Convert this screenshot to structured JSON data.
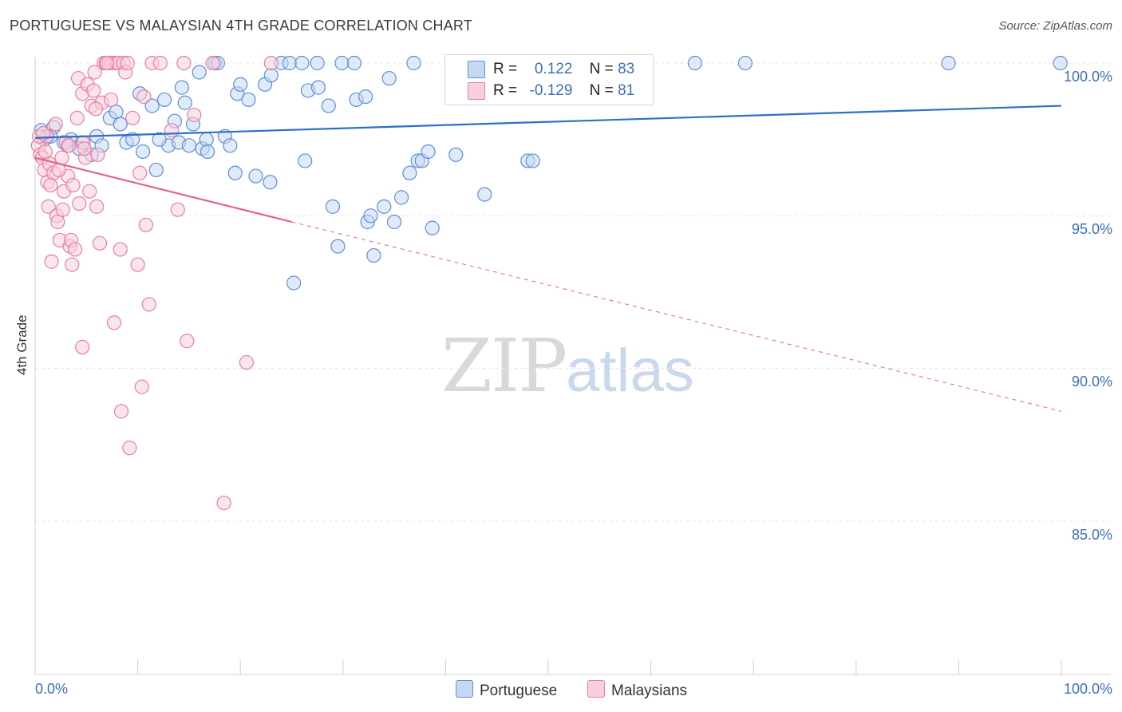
{
  "header": {
    "title": "PORTUGUESE VS MALAYSIAN 4TH GRADE CORRELATION CHART",
    "source": "Source: ZipAtlas.com"
  },
  "watermark": {
    "zip": "ZIP",
    "atlas": "atlas"
  },
  "colors": {
    "portuguese": "#5b8fd9",
    "portuguese_fill": "#c6d9f3",
    "portuguese_line": "#2d6fca",
    "malaysian": "#e97ea0",
    "malaysian_fill": "#f8cfdc",
    "malaysian_line": "#e0668d",
    "tick": "#3c6fb8"
  },
  "legend_stats": {
    "r_label": "R =",
    "n_label": "N =",
    "portuguese": {
      "r": "0.122",
      "n": "83"
    },
    "malaysian": {
      "r": "-0.129",
      "n": "81"
    }
  },
  "legend_bottom": {
    "portuguese": "Portuguese",
    "malaysian": "Malaysians"
  },
  "chart_data": {
    "type": "scatter",
    "title": "PORTUGUESE VS MALAYSIAN 4TH GRADE CORRELATION CHART",
    "xlabel": "",
    "ylabel": "4th Grade",
    "xlim": [
      0,
      100
    ],
    "ylim": [
      80.3,
      100.6
    ],
    "x_tick_labels": [
      "0.0%",
      "100.0%"
    ],
    "y_ticks": [
      100,
      95,
      90,
      85
    ],
    "y_tick_labels": [
      "100.0%",
      "95.0%",
      "90.0%",
      "85.0%"
    ],
    "grid": true,
    "series": [
      {
        "name": "Portuguese",
        "r": 0.122,
        "n": 83,
        "trend": {
          "x": [
            0,
            100
          ],
          "y": [
            97.55,
            98.6
          ],
          "style": "solid"
        },
        "points": [
          [
            0.6,
            97.8
          ],
          [
            0.9,
            97.5
          ],
          [
            1.8,
            97.9
          ],
          [
            1.2,
            97.6
          ],
          [
            3.5,
            97.5
          ],
          [
            4.6,
            97.4
          ],
          [
            2.8,
            97.4
          ],
          [
            1.5,
            97.6
          ],
          [
            3.2,
            97.3
          ],
          [
            5.5,
            97.0
          ],
          [
            6.0,
            97.6
          ],
          [
            6.5,
            97.3
          ],
          [
            4.3,
            97.2
          ],
          [
            7.3,
            98.2
          ],
          [
            7.9,
            98.4
          ],
          [
            8.3,
            98.0
          ],
          [
            8.9,
            97.4
          ],
          [
            9.5,
            97.5
          ],
          [
            10.5,
            97.1
          ],
          [
            10.2,
            99.0
          ],
          [
            11.4,
            98.6
          ],
          [
            11.8,
            96.5
          ],
          [
            12.6,
            98.8
          ],
          [
            13.0,
            97.3
          ],
          [
            13.6,
            98.1
          ],
          [
            14.0,
            97.4
          ],
          [
            14.3,
            99.2
          ],
          [
            14.6,
            98.7
          ],
          [
            15.4,
            98.0
          ],
          [
            16.0,
            99.7
          ],
          [
            16.3,
            97.2
          ],
          [
            16.7,
            97.5
          ],
          [
            17.5,
            100.0
          ],
          [
            17.8,
            100.0
          ],
          [
            18.5,
            97.6
          ],
          [
            19.0,
            97.3
          ],
          [
            19.5,
            96.4
          ],
          [
            19.7,
            99.0
          ],
          [
            20.0,
            99.3
          ],
          [
            20.8,
            98.8
          ],
          [
            21.5,
            96.3
          ],
          [
            22.4,
            99.3
          ],
          [
            22.9,
            96.1
          ],
          [
            23.0,
            99.6
          ],
          [
            24.0,
            100.0
          ],
          [
            24.8,
            100.0
          ],
          [
            25.2,
            92.8
          ],
          [
            26.0,
            100.0
          ],
          [
            26.3,
            96.8
          ],
          [
            26.6,
            99.1
          ],
          [
            27.5,
            100.0
          ],
          [
            27.6,
            99.2
          ],
          [
            28.6,
            98.6
          ],
          [
            29.0,
            95.3
          ],
          [
            29.5,
            94.0
          ],
          [
            29.9,
            100.0
          ],
          [
            31.1,
            100.0
          ],
          [
            31.3,
            98.8
          ],
          [
            32.2,
            98.9
          ],
          [
            32.4,
            94.8
          ],
          [
            32.7,
            95.0
          ],
          [
            33.0,
            93.7
          ],
          [
            34.0,
            95.3
          ],
          [
            34.5,
            99.5
          ],
          [
            35.0,
            94.8
          ],
          [
            35.7,
            95.6
          ],
          [
            36.5,
            96.4
          ],
          [
            36.9,
            100.0
          ],
          [
            37.3,
            96.8
          ],
          [
            37.7,
            96.8
          ],
          [
            38.3,
            97.1
          ],
          [
            38.7,
            94.6
          ],
          [
            41.0,
            97.0
          ],
          [
            43.8,
            95.7
          ],
          [
            48.0,
            96.8
          ],
          [
            48.5,
            96.8
          ],
          [
            64.3,
            100.0
          ],
          [
            69.2,
            100.0
          ],
          [
            89.0,
            100.0
          ],
          [
            99.9,
            100.0
          ],
          [
            12.1,
            97.5
          ],
          [
            15.0,
            97.3
          ],
          [
            16.8,
            97.1
          ]
        ]
      },
      {
        "name": "Malaysians",
        "r": -0.129,
        "n": 81,
        "trend": {
          "x": [
            0,
            25,
            100
          ],
          "y": [
            96.9,
            94.8,
            88.6
          ],
          "solid_until": 25,
          "style": "solid-then-dashed"
        },
        "points": [
          [
            0.3,
            97.3
          ],
          [
            0.5,
            97.0
          ],
          [
            0.7,
            96.9
          ],
          [
            0.9,
            96.5
          ],
          [
            1.1,
            97.6
          ],
          [
            1.2,
            96.1
          ],
          [
            1.3,
            95.3
          ],
          [
            1.4,
            96.7
          ],
          [
            1.6,
            93.5
          ],
          [
            1.8,
            96.4
          ],
          [
            2.1,
            95.0
          ],
          [
            2.2,
            94.8
          ],
          [
            2.4,
            94.2
          ],
          [
            2.6,
            96.9
          ],
          [
            2.7,
            95.2
          ],
          [
            2.8,
            95.8
          ],
          [
            3.0,
            97.4
          ],
          [
            3.2,
            96.3
          ],
          [
            3.4,
            94.0
          ],
          [
            3.5,
            94.2
          ],
          [
            3.6,
            93.4
          ],
          [
            3.7,
            96.0
          ],
          [
            3.9,
            93.9
          ],
          [
            4.1,
            98.2
          ],
          [
            4.2,
            99.5
          ],
          [
            4.3,
            95.4
          ],
          [
            4.6,
            99.0
          ],
          [
            4.7,
            97.4
          ],
          [
            4.9,
            96.9
          ],
          [
            5.1,
            99.3
          ],
          [
            5.3,
            95.8
          ],
          [
            5.5,
            98.6
          ],
          [
            5.7,
            99.1
          ],
          [
            5.8,
            99.7
          ],
          [
            6.0,
            95.3
          ],
          [
            6.3,
            94.1
          ],
          [
            6.5,
            98.7
          ],
          [
            6.7,
            100.0
          ],
          [
            6.9,
            100.0
          ],
          [
            7.2,
            100.0
          ],
          [
            7.4,
            98.8
          ],
          [
            7.5,
            100.0
          ],
          [
            7.7,
            91.5
          ],
          [
            7.9,
            100.0
          ],
          [
            8.1,
            100.0
          ],
          [
            8.3,
            93.9
          ],
          [
            8.4,
            88.6
          ],
          [
            8.6,
            100.0
          ],
          [
            8.8,
            99.7
          ],
          [
            9.2,
            87.4
          ],
          [
            9.5,
            98.2
          ],
          [
            10.0,
            93.4
          ],
          [
            10.2,
            96.4
          ],
          [
            10.4,
            89.4
          ],
          [
            10.8,
            94.7
          ],
          [
            11.1,
            92.1
          ],
          [
            11.4,
            100.0
          ],
          [
            13.3,
            97.8
          ],
          [
            13.9,
            95.2
          ],
          [
            14.5,
            100.0
          ],
          [
            14.8,
            90.9
          ],
          [
            15.5,
            98.3
          ],
          [
            17.3,
            100.0
          ],
          [
            18.4,
            85.6
          ],
          [
            20.6,
            90.2
          ],
          [
            23.0,
            100.0
          ],
          [
            4.6,
            90.7
          ],
          [
            2.0,
            98.0
          ],
          [
            0.4,
            97.6
          ],
          [
            1.0,
            97.1
          ],
          [
            1.5,
            96.0
          ],
          [
            3.3,
            97.3
          ],
          [
            2.3,
            96.5
          ],
          [
            4.8,
            97.2
          ],
          [
            6.1,
            97.0
          ],
          [
            10.6,
            98.9
          ],
          [
            12.2,
            100.0
          ],
          [
            9.0,
            100.0
          ],
          [
            7.0,
            100.0
          ],
          [
            0.8,
            97.7
          ],
          [
            5.9,
            98.5
          ]
        ]
      }
    ]
  }
}
